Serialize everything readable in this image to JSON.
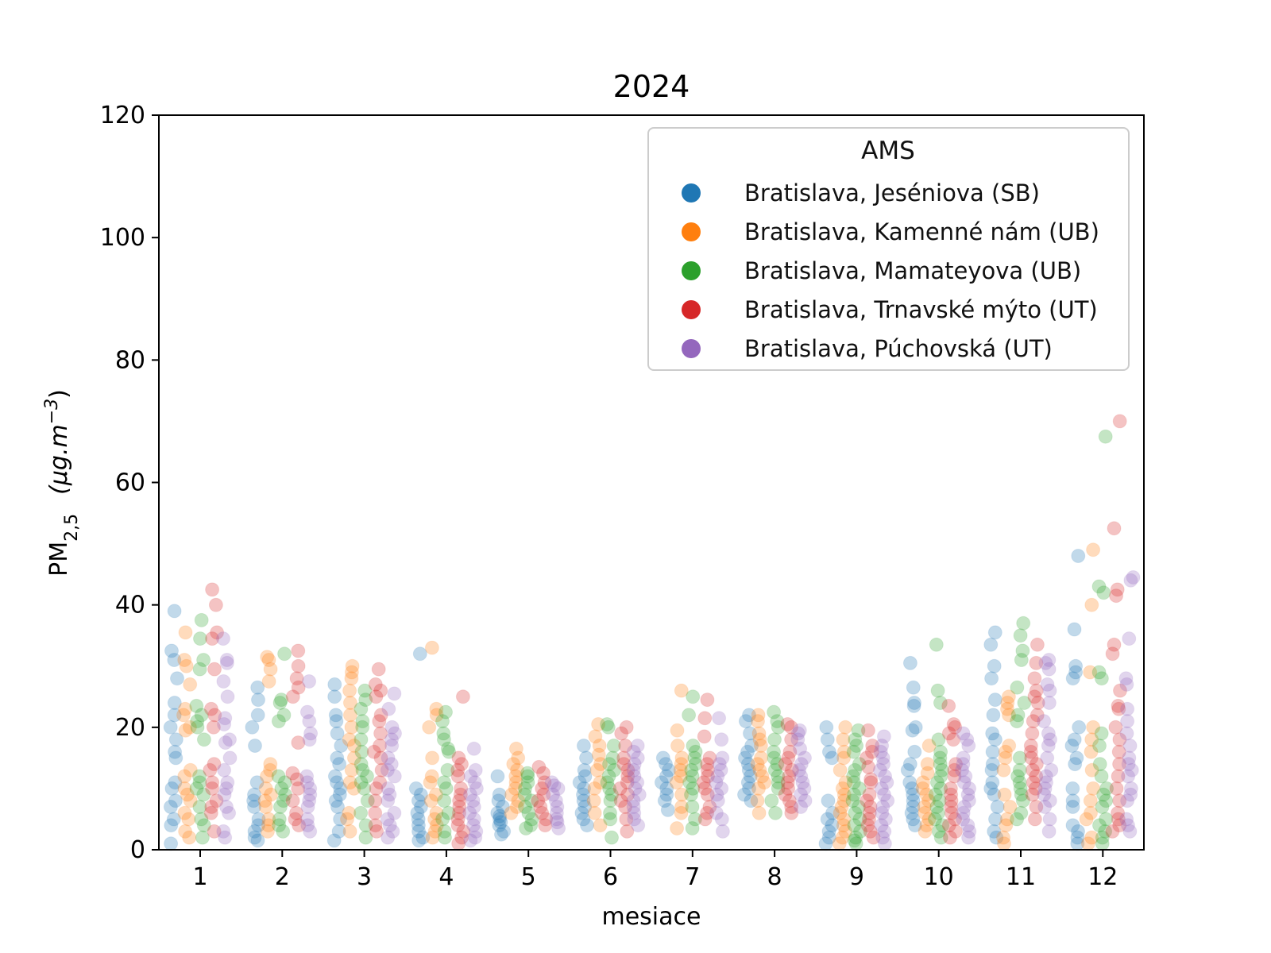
{
  "chart_data": {
    "type": "scatter",
    "title": "2024",
    "xlabel": "mesiace",
    "ylabel": "PM2,5 (μg.m-3)",
    "ylabel_parts": {
      "base": "PM",
      "sub": "2,5",
      "unit_prefix": "(μg.m",
      "unit_sup": "−3",
      "unit_suffix": ")"
    },
    "ylim": [
      0,
      120
    ],
    "yticks": [
      0,
      20,
      40,
      60,
      80,
      100,
      120
    ],
    "categories": [
      "1",
      "2",
      "3",
      "4",
      "5",
      "6",
      "7",
      "8",
      "9",
      "10",
      "11",
      "12"
    ],
    "grid": false,
    "legend": {
      "title": "AMS",
      "placement": "top-right"
    },
    "series": [
      {
        "name": "Bratislava, Jeséniova (SB)",
        "color": "#1f77b4",
        "values": [
          [
            39,
            32.5,
            31,
            28,
            24,
            22,
            20,
            18,
            16,
            15,
            11,
            10,
            8,
            7,
            5,
            4,
            1
          ],
          [
            26.5,
            24.5,
            22,
            20,
            17,
            11,
            9,
            8,
            7,
            5,
            4,
            3,
            2,
            1.5
          ],
          [
            27,
            25,
            22,
            21,
            19,
            17,
            15,
            14,
            12,
            11,
            10,
            9,
            8,
            7,
            5,
            3,
            1.5
          ],
          [
            32,
            10,
            9,
            8,
            7,
            6,
            5,
            4,
            3,
            2,
            1.5
          ],
          [
            12,
            9,
            8,
            7,
            6,
            5.5,
            5,
            4.5,
            4,
            3,
            2.5
          ],
          [
            17,
            15,
            13,
            12,
            11,
            10,
            9,
            8,
            7,
            6,
            5,
            4
          ],
          [
            15,
            14,
            13,
            12,
            11,
            10,
            9,
            8,
            6.5
          ],
          [
            22,
            21,
            19,
            17,
            16,
            15,
            14,
            13,
            12,
            11,
            10,
            9,
            8
          ],
          [
            20,
            18,
            16,
            15,
            8,
            6,
            5,
            4,
            3,
            2,
            1
          ],
          [
            30.5,
            26.5,
            24,
            23.5,
            20,
            19.5,
            16,
            14,
            13,
            11,
            10,
            9,
            8,
            7,
            6,
            5,
            4
          ],
          [
            35.5,
            33.5,
            30,
            28,
            24.5,
            22,
            19,
            18,
            16,
            14,
            13,
            11,
            10,
            9,
            7,
            5,
            3,
            2
          ],
          [
            48,
            36,
            30,
            29,
            28,
            20,
            18,
            17,
            15,
            14,
            10,
            8,
            7,
            4,
            3,
            2,
            1
          ]
        ]
      },
      {
        "name": "Bratislava, Kamenné nám (UB)",
        "color": "#ff7f0e",
        "values": [
          [
            35.5,
            31,
            30,
            27,
            23,
            22,
            20,
            19.5,
            13,
            12,
            10,
            9,
            8,
            6,
            5,
            3,
            2
          ],
          [
            31.5,
            31,
            29.5,
            27.5,
            14,
            13,
            12,
            10,
            9,
            8,
            7,
            5,
            4,
            3
          ],
          [
            30,
            29,
            28,
            26,
            24,
            22,
            20,
            18,
            17,
            15,
            13,
            11,
            10,
            6,
            5,
            3
          ],
          [
            33,
            23,
            22,
            20,
            15,
            12,
            11,
            9,
            8,
            6,
            5,
            4,
            3,
            2
          ],
          [
            16.5,
            15,
            14,
            13,
            12,
            11,
            10,
            9,
            8,
            7,
            6
          ],
          [
            20.5,
            18.5,
            17,
            15.5,
            14,
            13,
            11,
            10,
            8,
            6,
            4
          ],
          [
            26,
            19.5,
            17,
            15,
            14,
            13,
            12,
            11,
            9,
            7,
            6,
            3.5
          ],
          [
            22,
            21,
            19,
            18,
            17,
            15,
            14,
            13,
            12,
            11,
            10,
            8,
            6
          ],
          [
            20,
            18,
            16,
            15,
            13,
            11,
            10,
            9,
            8,
            7,
            6,
            5,
            4,
            3,
            2,
            1
          ],
          [
            17,
            14,
            12.5,
            11,
            10,
            9,
            8,
            7,
            6,
            5,
            4,
            3
          ],
          [
            25,
            24,
            23,
            22,
            17,
            16,
            15,
            13,
            9,
            7,
            5,
            4,
            2,
            1
          ],
          [
            49,
            40,
            29,
            20,
            18,
            16,
            13,
            10,
            8,
            6,
            5,
            2,
            1
          ]
        ]
      },
      {
        "name": "Bratislava, Mamateyova (UB)",
        "color": "#2ca02c",
        "values": [
          [
            37.5,
            34.5,
            31,
            29.5,
            23.5,
            22,
            21,
            20,
            18,
            12,
            11,
            10,
            9,
            7,
            5,
            4,
            2
          ],
          [
            32,
            24.5,
            24,
            22,
            21,
            12,
            11,
            10,
            9,
            8,
            7,
            5,
            4,
            3
          ],
          [
            26,
            24.5,
            23,
            21,
            20,
            18,
            16,
            14,
            13,
            12,
            11,
            10,
            8,
            6,
            4,
            2
          ],
          [
            22.5,
            21,
            19,
            18,
            16.5,
            16,
            13,
            11,
            10,
            8,
            6,
            5,
            3,
            2
          ],
          [
            12.5,
            12,
            11,
            10,
            9,
            8,
            7,
            6,
            5,
            4,
            3.5
          ],
          [
            20.5,
            20,
            17,
            15,
            14,
            13,
            12,
            11,
            10,
            9,
            8,
            6,
            5,
            2
          ],
          [
            25,
            22,
            17,
            16,
            15,
            14,
            13,
            12,
            11,
            10,
            9,
            7,
            5,
            3.5
          ],
          [
            22.5,
            21,
            20,
            18,
            16,
            15,
            14,
            13,
            12,
            11,
            10,
            8,
            6
          ],
          [
            19.5,
            18,
            17,
            16,
            14,
            13,
            12,
            11,
            10,
            9,
            8,
            7,
            6,
            5,
            4,
            3,
            2,
            1.5,
            1
          ],
          [
            33.5,
            26,
            24,
            18,
            16,
            15,
            14,
            13,
            12,
            11,
            10,
            9,
            8,
            7,
            6,
            5,
            4,
            3,
            2
          ],
          [
            37,
            35,
            32.5,
            31,
            26.5,
            24,
            22,
            21,
            15,
            13,
            12,
            11,
            10,
            9,
            8,
            6,
            5
          ],
          [
            67.5,
            43,
            42,
            29,
            28,
            19,
            17,
            14,
            12,
            10,
            9,
            8,
            7,
            5,
            4,
            3,
            2,
            1
          ]
        ]
      },
      {
        "name": "Bratislava, Trnavské mýto (UT)",
        "color": "#d62728",
        "values": [
          [
            42.5,
            40,
            35.5,
            34.5,
            29.5,
            23,
            22,
            20,
            14,
            13,
            11,
            10,
            8,
            7,
            6,
            3
          ],
          [
            32.5,
            30,
            28,
            26.5,
            25,
            17.5,
            12.5,
            11.5,
            10,
            8,
            6,
            5,
            4
          ],
          [
            29.5,
            27,
            26,
            25,
            22,
            21,
            19,
            17,
            16,
            15,
            13,
            11,
            10,
            8,
            6,
            4,
            3
          ],
          [
            25,
            15,
            14,
            13,
            12,
            10,
            9,
            8,
            7,
            6,
            5,
            4,
            3,
            2,
            1
          ],
          [
            13.5,
            12.5,
            11,
            10,
            9,
            8,
            7,
            6,
            5,
            4
          ],
          [
            20,
            19,
            17,
            15,
            14,
            13,
            12,
            11,
            10,
            9,
            8,
            7,
            5,
            3
          ],
          [
            24.5,
            21.5,
            18.5,
            15,
            14,
            13,
            12,
            11,
            10,
            9,
            7,
            6,
            5
          ],
          [
            20.5,
            20,
            18,
            16,
            15,
            14,
            13,
            12,
            11,
            10,
            9,
            8,
            7,
            6
          ],
          [
            19.5,
            17,
            16,
            15,
            13.5,
            11.5,
            11,
            9,
            8,
            7,
            6,
            5,
            4,
            3,
            2
          ],
          [
            23.5,
            20.5,
            20,
            19,
            18,
            14,
            13,
            12,
            10,
            9,
            8,
            7,
            6,
            5,
            4,
            3,
            2
          ],
          [
            33.5,
            30.5,
            28,
            26,
            25,
            24,
            22,
            21,
            19,
            17,
            16,
            15,
            14,
            13,
            12,
            11,
            10,
            9,
            7,
            5
          ],
          [
            70,
            52.5,
            42.5,
            41.5,
            33.5,
            32,
            26,
            23.5,
            23,
            20,
            18,
            16,
            14,
            12,
            10,
            8,
            6,
            5,
            4,
            3
          ]
        ]
      },
      {
        "name": "Bratislava, Púchovská (UT)",
        "color": "#9467bd",
        "values": [
          [
            34.5,
            31,
            30.5,
            27.5,
            25,
            21.5,
            20.5,
            18,
            17.5,
            15,
            13,
            11,
            10,
            9,
            7,
            6,
            3,
            2
          ],
          [
            27.5,
            22.5,
            21,
            19,
            18,
            12,
            11,
            10,
            9,
            8,
            7,
            5,
            4,
            3
          ],
          [
            25.5,
            23,
            20,
            19,
            18,
            17,
            15,
            14,
            13,
            12,
            10,
            9,
            8,
            6,
            5,
            4,
            3,
            2
          ],
          [
            16.5,
            13,
            12,
            11,
            10,
            9,
            8,
            7,
            6,
            5,
            4,
            3,
            2,
            1.5
          ],
          [
            11,
            10.5,
            10,
            9,
            8,
            7,
            6,
            5,
            4.5,
            3.5
          ],
          [
            17,
            16,
            15,
            14,
            13,
            12,
            11,
            10,
            9,
            8,
            7,
            6,
            5,
            4
          ],
          [
            21.5,
            18,
            15,
            14,
            13,
            12,
            11,
            10,
            9,
            8,
            6,
            5,
            3
          ],
          [
            19.5,
            19,
            18,
            16.5,
            15,
            14,
            13,
            12,
            11,
            10,
            9,
            8,
            7
          ],
          [
            18.5,
            17,
            16,
            15,
            14,
            13,
            12,
            11,
            10,
            9,
            8,
            7,
            6,
            5,
            4,
            3,
            2,
            1
          ],
          [
            19,
            18,
            17,
            15,
            14,
            13,
            12,
            11,
            10,
            9,
            8,
            7,
            6,
            5,
            4,
            3,
            2
          ],
          [
            31,
            30.5,
            29.5,
            27,
            26,
            24,
            21,
            19,
            18,
            17,
            15,
            13,
            12,
            11,
            10,
            9,
            8,
            7,
            5,
            3
          ],
          [
            44.5,
            44,
            34.5,
            28,
            27,
            23,
            21,
            19,
            17,
            15,
            14,
            13,
            12,
            10,
            9,
            8,
            5,
            4,
            3
          ]
        ]
      }
    ]
  }
}
